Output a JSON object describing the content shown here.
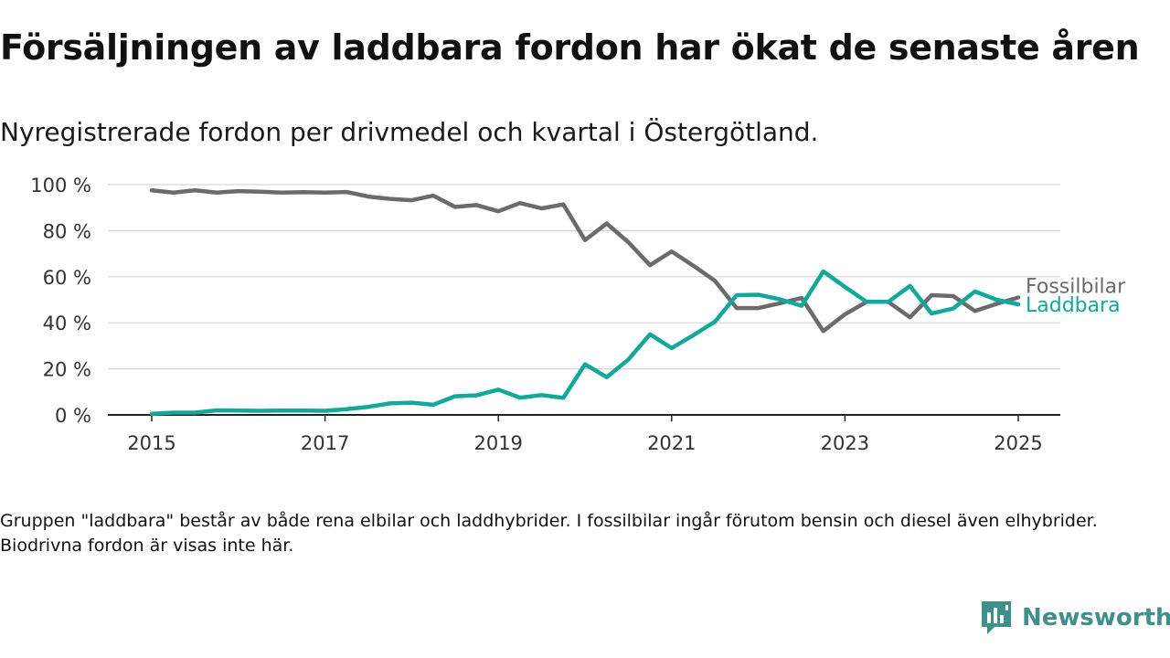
{
  "title": "Försäljningen av laddbara fordon har ökat de senaste åren",
  "subtitle": "Nyregistrerade fordon per drivmedel och kvartal i Östergötland.",
  "note": "Gruppen \"laddbara\" består av både rena elbilar och laddhybrider. I fossilbilar ingår förutom bensin och diesel även elhybrider. Biodrivna fordon är visas inte här.",
  "brand": {
    "name": "Newsworthy",
    "color": "#3f8f8a"
  },
  "chart_data": {
    "type": "line",
    "title": "",
    "xlabel": "",
    "ylabel": "",
    "x": [
      "2015 Q1",
      "2015 Q2",
      "2015 Q3",
      "2015 Q4",
      "2016 Q1",
      "2016 Q2",
      "2016 Q3",
      "2016 Q4",
      "2017 Q1",
      "2017 Q2",
      "2017 Q3",
      "2017 Q4",
      "2018 Q1",
      "2018 Q2",
      "2018 Q3",
      "2018 Q4",
      "2019 Q1",
      "2019 Q2",
      "2019 Q3",
      "2019 Q4",
      "2020 Q1",
      "2020 Q2",
      "2020 Q3",
      "2020 Q4",
      "2021 Q1",
      "2021 Q2",
      "2021 Q3",
      "2021 Q4",
      "2022 Q1",
      "2022 Q2",
      "2022 Q3",
      "2022 Q4",
      "2023 Q1",
      "2023 Q2",
      "2023 Q3",
      "2023 Q4",
      "2024 Q1",
      "2024 Q2",
      "2024 Q3",
      "2024 Q4",
      "2025 Q1"
    ],
    "xticks": [
      "2015",
      "2017",
      "2019",
      "2021",
      "2023",
      "2025"
    ],
    "yticks": [
      "0 %",
      "20 %",
      "40 %",
      "60 %",
      "80 %",
      "100 %"
    ],
    "ylim": [
      0,
      100
    ],
    "xlim": [
      2015,
      2025.5
    ],
    "grid": true,
    "series": [
      {
        "name": "Fossilbilar",
        "color": "#6b6b6d",
        "values": [
          97.5,
          96.5,
          97.5,
          96.5,
          97.2,
          96.9,
          96.5,
          96.7,
          96.5,
          96.8,
          94.8,
          93.8,
          93.2,
          95.2,
          90.3,
          91.1,
          88.4,
          92.0,
          89.7,
          91.4,
          75.9,
          83.1,
          75.0,
          65.0,
          71.0,
          64.8,
          58.2,
          46.4,
          46.4,
          48.5,
          50.8,
          36.4,
          43.7,
          49.1,
          49.1,
          42.4,
          52.0,
          51.6,
          45.1,
          48.2,
          51.0
        ]
      },
      {
        "name": "Laddbara",
        "color": "#12a89a",
        "values": [
          0.5,
          1.0,
          1.0,
          2.0,
          1.9,
          1.8,
          1.9,
          1.9,
          1.8,
          2.5,
          3.5,
          5.0,
          5.3,
          4.4,
          8.1,
          8.5,
          11.0,
          7.5,
          8.6,
          7.4,
          22.0,
          16.4,
          24.0,
          35.0,
          29.0,
          34.6,
          40.5,
          52.0,
          52.2,
          50.2,
          47.4,
          62.3,
          55.6,
          49.1,
          49.1,
          56.0,
          44.0,
          46.2,
          53.6,
          50.0,
          48.0
        ]
      }
    ]
  }
}
